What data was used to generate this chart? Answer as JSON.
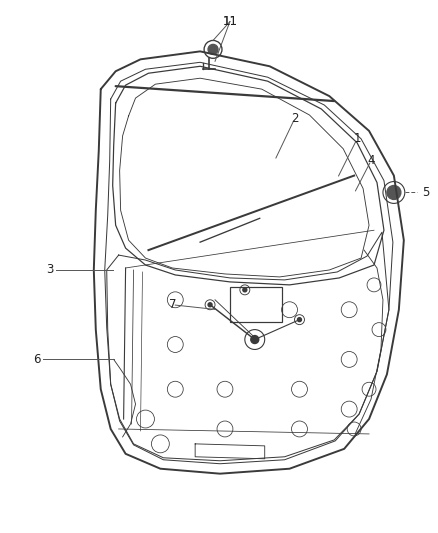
{
  "background_color": "#ffffff",
  "fig_width": 4.38,
  "fig_height": 5.33,
  "dpi": 100,
  "line_color": "#3a3a3a",
  "line_color_light": "#888888",
  "label_fontsize": 8.5,
  "label_color": "#222222"
}
